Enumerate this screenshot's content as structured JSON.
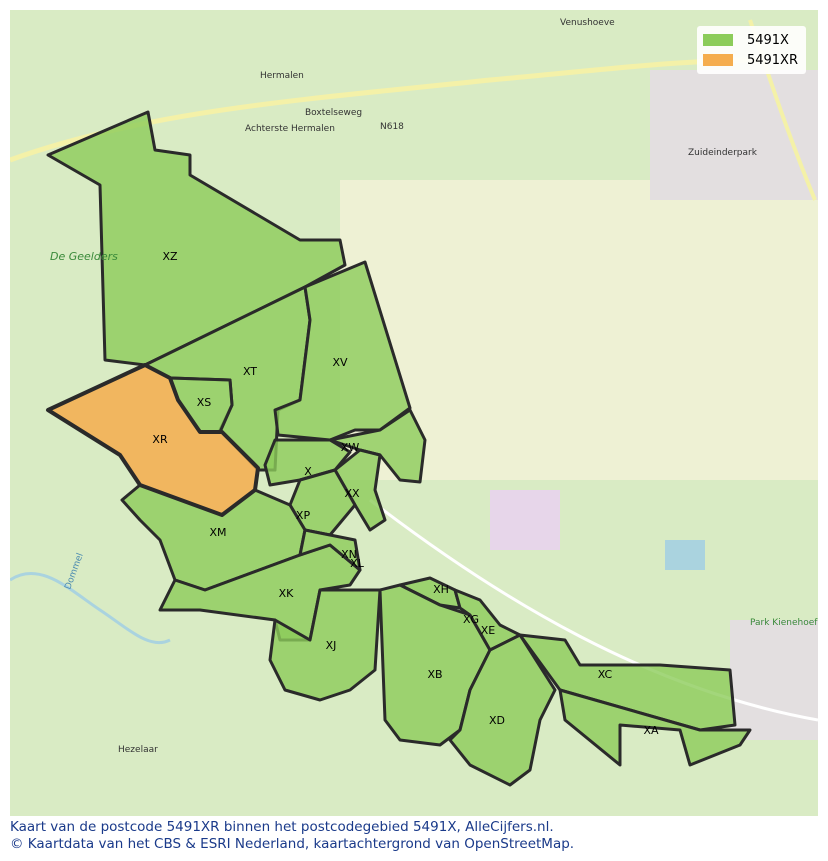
{
  "legend": [
    {
      "label": "5491X",
      "color": "#8ccc5a"
    },
    {
      "label": "5491XR",
      "color": "#f5ad4e"
    }
  ],
  "caption": {
    "line1": "Kaart van de postcode 5491XR binnen het postcodegebied 5491X, AlleCijfers.nl.",
    "line2": "© Kaartdata van het CBS & ESRI Nederland, kaartachtergrond van OpenStreetMap."
  },
  "places": [
    "Venushoeve",
    "Hermalen",
    "Achterste Hermalen",
    "Boxtelseweg",
    "N618",
    "Zuideinderpark",
    "De Geelders",
    "Park Kienehoef",
    "Hezelaar",
    "Dommel"
  ],
  "areas": [
    "XZ",
    "XT",
    "XV",
    "XS",
    "XR",
    "XW",
    "X",
    "XX",
    "XP",
    "XM",
    "XN",
    "XL",
    "XK",
    "XJ",
    "XH",
    "XG",
    "XE",
    "XB",
    "XD",
    "XC",
    "XA"
  ],
  "highlight": "XR"
}
